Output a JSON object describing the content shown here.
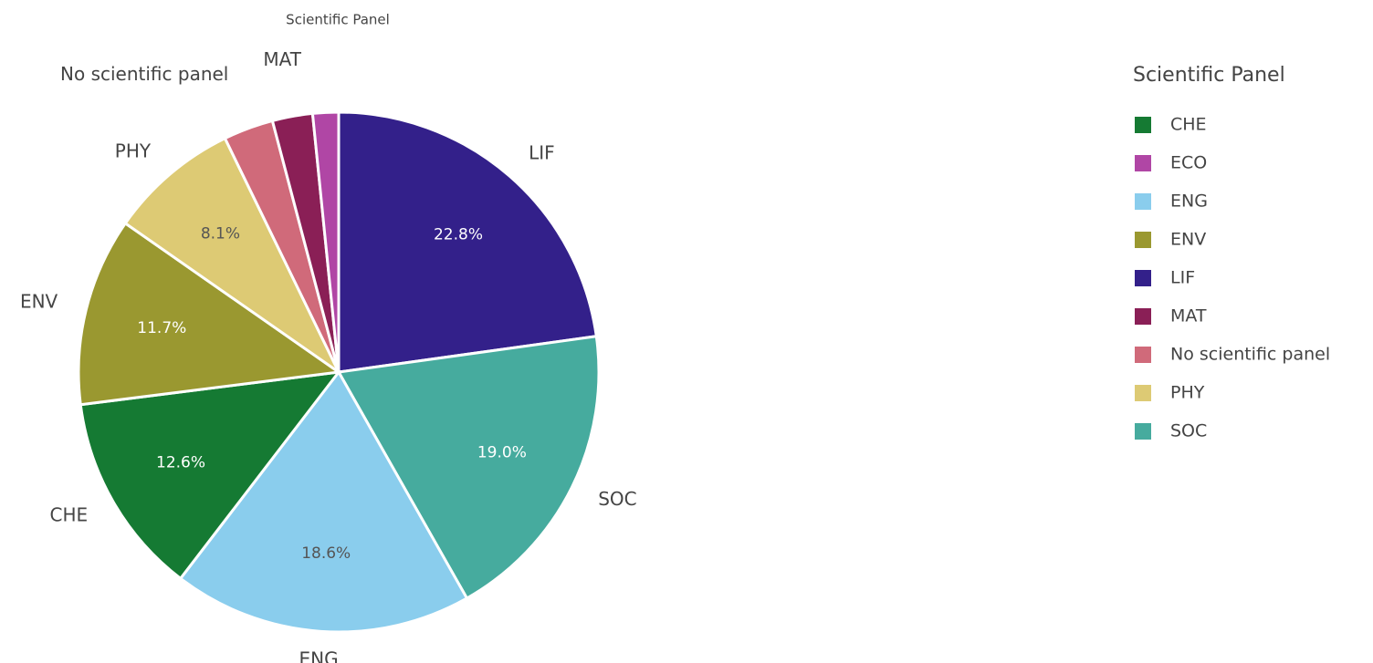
{
  "chart_data": {
    "type": "pie",
    "title": "Scientific Panel",
    "legend_title": "Scientific Panel",
    "legend": "right",
    "categories": [
      "CHE",
      "ECO",
      "ENG",
      "ENV",
      "LIF",
      "MAT",
      "No scientific panel",
      "PHY",
      "SOC"
    ],
    "values": [
      12.6,
      1.6,
      18.6,
      11.7,
      22.8,
      2.5,
      3.1,
      8.1,
      19.0
    ],
    "value_labels": [
      "12.6%",
      null,
      "18.6%",
      "11.7%",
      "22.8%",
      null,
      null,
      "8.1%",
      "19.0%"
    ],
    "colors": [
      "#157a33",
      "#b046a5",
      "#8acded",
      "#9a9830",
      "#33208a",
      "#8a1f56",
      "#d06a7a",
      "#ddca74",
      "#46ab9e"
    ]
  }
}
